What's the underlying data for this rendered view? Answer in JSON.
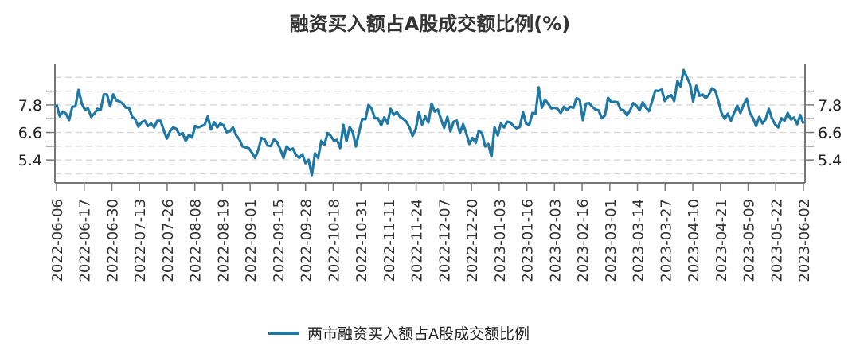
{
  "chart_data": {
    "type": "line",
    "title": "融资买入额占A股成交额比例(%)",
    "xlabel": "",
    "ylabel": "",
    "x_start": "2022-06-06",
    "x_end": "2023-06-02",
    "x_tick_labels": [
      "2022-06-06",
      "2022-06-17",
      "2022-06-30",
      "2022-07-13",
      "2022-07-26",
      "2022-08-08",
      "2022-08-19",
      "2022-09-01",
      "2022-09-15",
      "2022-09-28",
      "2022-10-18",
      "2022-10-31",
      "2022-11-11",
      "2022-11-24",
      "2022-12-07",
      "2022-12-20",
      "2023-01-03",
      "2023-01-16",
      "2023-02-03",
      "2023-02-16",
      "2023-03-01",
      "2023-03-14",
      "2023-03-27",
      "2023-04-10",
      "2023-04-21",
      "2023-05-09",
      "2023-05-22",
      "2023-06-02"
    ],
    "y_tick_labels": [
      "7.8",
      "6.6",
      "5.4"
    ],
    "y_tick_values": [
      7.8,
      6.6,
      5.4
    ],
    "ylim": [
      4.4,
      9.6
    ],
    "gridlines": [
      4.8,
      5.4,
      6.0,
      6.6,
      7.2,
      7.8,
      8.4,
      9.0
    ],
    "grid": true,
    "grid_style": "dashed-horizontal",
    "dual_y_axis": true,
    "legend_position": "bottom",
    "series": [
      {
        "name": "两市融资买入额占A股成交额比例",
        "color": "#1f78a4",
        "values": [
          7.83,
          7.3,
          7.51,
          7.42,
          7.14,
          7.72,
          7.74,
          8.46,
          7.86,
          7.6,
          7.65,
          7.28,
          7.42,
          7.63,
          7.57,
          8.26,
          8.26,
          7.74,
          8.26,
          8.0,
          7.95,
          7.86,
          7.68,
          7.68,
          7.28,
          7.17,
          6.85,
          7.05,
          7.11,
          6.88,
          6.99,
          6.82,
          7.11,
          7.11,
          6.7,
          6.33,
          6.65,
          6.82,
          6.76,
          6.5,
          6.57,
          6.22,
          6.5,
          6.38,
          6.88,
          6.82,
          6.88,
          6.93,
          7.3,
          6.73,
          7.05,
          6.82,
          6.99,
          6.91,
          6.61,
          6.65,
          6.82,
          6.47,
          6.3,
          5.99,
          5.95,
          5.92,
          5.72,
          5.49,
          5.84,
          6.36,
          6.3,
          6.03,
          6.01,
          6.3,
          6.18,
          5.87,
          5.49,
          5.99,
          5.84,
          5.9,
          5.61,
          5.49,
          5.64,
          5.26,
          5.41,
          4.74,
          5.69,
          5.49,
          6.24,
          6.07,
          6.57,
          6.45,
          6.24,
          6.28,
          5.92,
          6.93,
          6.22,
          6.84,
          6.61,
          5.99,
          6.61,
          7.19,
          7.17,
          7.8,
          7.63,
          7.22,
          7.22,
          6.91,
          7.26,
          6.99,
          7.63,
          7.37,
          7.49,
          7.28,
          7.19,
          7.07,
          6.82,
          6.45,
          6.76,
          7.49,
          6.93,
          7.3,
          7.03,
          7.86,
          7.51,
          7.6,
          7.17,
          6.8,
          7.28,
          6.65,
          7.07,
          7.11,
          6.57,
          6.96,
          6.57,
          6.1,
          6.36,
          6.15,
          6.68,
          6.57,
          5.99,
          6.1,
          5.55,
          6.82,
          6.47,
          6.99,
          6.82,
          7.07,
          7.03,
          6.88,
          6.78,
          6.84,
          7.49,
          6.99,
          6.93,
          7.45,
          7.42,
          8.57,
          7.68,
          8.03,
          7.86,
          7.65,
          7.68,
          7.63,
          7.45,
          7.72,
          7.57,
          7.72,
          7.68,
          8.09,
          8.03,
          7.14,
          7.86,
          7.88,
          7.72,
          7.6,
          7.57,
          7.22,
          7.34,
          8.11,
          7.92,
          7.94,
          7.92,
          7.6,
          7.57,
          7.34,
          7.57,
          7.88,
          7.77,
          7.57,
          7.92,
          7.68,
          7.53,
          7.97,
          8.43,
          8.41,
          8.47,
          7.97,
          8.15,
          8.23,
          7.97,
          8.84,
          8.61,
          9.32,
          9.01,
          8.72,
          7.95,
          8.64,
          8.2,
          8.26,
          8.09,
          8.26,
          8.53,
          8.43,
          7.97,
          7.45,
          7.19,
          7.42,
          7.11,
          7.45,
          7.77,
          7.45,
          7.8,
          8.07,
          7.45,
          7.22,
          6.88,
          7.28,
          6.99,
          7.17,
          7.63,
          7.22,
          6.96,
          6.82,
          7.22,
          7.11,
          7.45,
          7.17,
          7.25,
          6.96,
          7.36,
          6.99
        ]
      }
    ]
  }
}
